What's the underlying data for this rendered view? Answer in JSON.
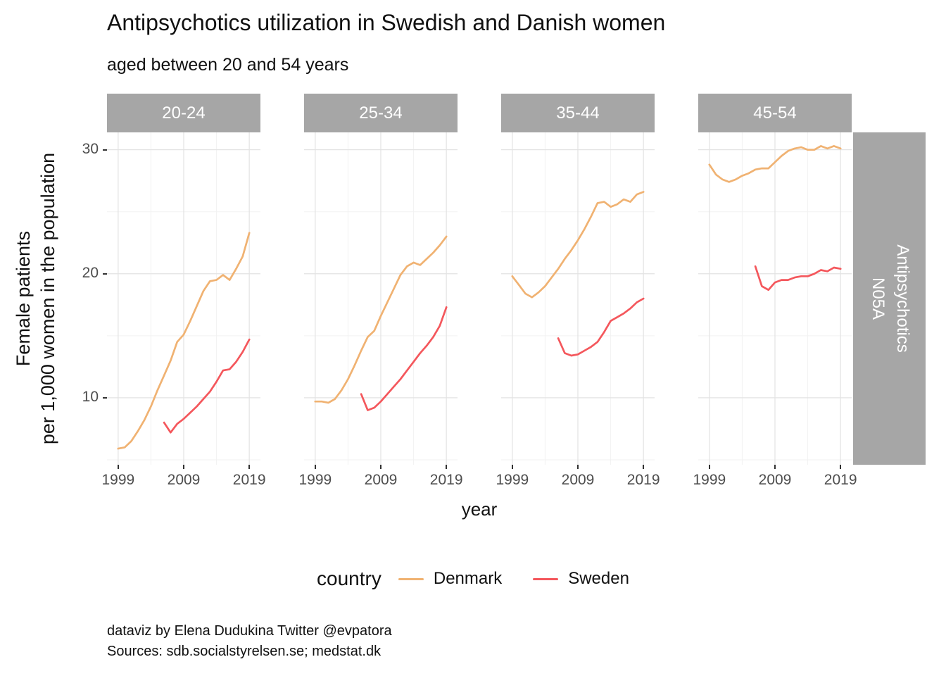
{
  "title": "Antipsychotics utilization in Swedish and Danish women",
  "subtitle": "aged between 20 and 54 years",
  "axis": {
    "x_label": "year",
    "y_label_line1": "Female patients",
    "y_label_line2": "per 1,000 women in the population"
  },
  "strip_right": {
    "line1": "Antipsychotics",
    "line2": "N05A"
  },
  "legend": {
    "title": "country"
  },
  "caption": {
    "line1": "dataviz by Elena Dudukina Twitter @evpatora",
    "line2": "Sources: sdb.socialstyrelsen.se; medstat.dk"
  },
  "colors": {
    "denmark": "#F0B272",
    "sweden": "#F4575C",
    "strip_bg": "#A6A6A6",
    "strip_text": "#FFFFFF",
    "grid_major": "#E3E3E3",
    "grid_minor": "#F2F2F2",
    "tick_text": "#4D4D4D"
  },
  "chart_data": {
    "type": "line",
    "title": "Antipsychotics utilization in Swedish and Danish women",
    "subtitle": "aged between 20 and 54 years",
    "xlabel": "year",
    "ylabel": "Female patients per 1,000 women in the population",
    "right_strip_label": "Antipsychotics N05A",
    "x_ticks": [
      1999,
      2009,
      2019
    ],
    "y_ticks": [
      10,
      20,
      30
    ],
    "x_minor": [
      2004,
      2014
    ],
    "y_minor": [
      5,
      15,
      25
    ],
    "x_range": [
      1997.3,
      2020.7
    ],
    "y_range": [
      4.6,
      31.4
    ],
    "grid": true,
    "legend": {
      "title": "country",
      "position": "bottom",
      "entries": [
        {
          "label": "Denmark",
          "color": "#F0B272"
        },
        {
          "label": "Sweden",
          "color": "#F4575C"
        }
      ]
    },
    "facets": [
      {
        "label": "20-24",
        "series": [
          {
            "name": "Denmark",
            "color": "#F0B272",
            "x": [
              1999,
              2000,
              2001,
              2002,
              2003,
              2004,
              2005,
              2006,
              2007,
              2008,
              2009,
              2010,
              2011,
              2012,
              2013,
              2014,
              2015,
              2016,
              2017,
              2018,
              2019
            ],
            "y": [
              5.9,
              6.0,
              6.5,
              7.3,
              8.2,
              9.3,
              10.6,
              11.8,
              13.0,
              14.5,
              15.1,
              16.2,
              17.4,
              18.6,
              19.4,
              19.5,
              19.9,
              19.5,
              20.4,
              21.4,
              23.3
            ]
          },
          {
            "name": "Sweden",
            "color": "#F4575C",
            "x": [
              2006,
              2007,
              2008,
              2009,
              2010,
              2011,
              2012,
              2013,
              2014,
              2015,
              2016,
              2017,
              2018,
              2019
            ],
            "y": [
              8.0,
              7.2,
              7.9,
              8.3,
              8.8,
              9.3,
              9.9,
              10.5,
              11.3,
              12.2,
              12.3,
              12.9,
              13.7,
              14.7
            ]
          }
        ]
      },
      {
        "label": "25-34",
        "series": [
          {
            "name": "Denmark",
            "color": "#F0B272",
            "x": [
              1999,
              2000,
              2001,
              2002,
              2003,
              2004,
              2005,
              2006,
              2007,
              2008,
              2009,
              2010,
              2011,
              2012,
              2013,
              2014,
              2015,
              2016,
              2017,
              2018,
              2019
            ],
            "y": [
              9.7,
              9.7,
              9.6,
              9.9,
              10.6,
              11.5,
              12.6,
              13.8,
              14.9,
              15.4,
              16.6,
              17.7,
              18.8,
              19.9,
              20.6,
              20.9,
              20.7,
              21.2,
              21.7,
              22.3,
              23.0
            ]
          },
          {
            "name": "Sweden",
            "color": "#F4575C",
            "x": [
              2006,
              2007,
              2008,
              2009,
              2010,
              2011,
              2012,
              2013,
              2014,
              2015,
              2016,
              2017,
              2018,
              2019
            ],
            "y": [
              10.3,
              9.0,
              9.2,
              9.7,
              10.3,
              10.9,
              11.5,
              12.2,
              12.9,
              13.6,
              14.2,
              14.9,
              15.8,
              17.3
            ]
          }
        ]
      },
      {
        "label": "35-44",
        "series": [
          {
            "name": "Denmark",
            "color": "#F0B272",
            "x": [
              1999,
              2000,
              2001,
              2002,
              2003,
              2004,
              2005,
              2006,
              2007,
              2008,
              2009,
              2010,
              2011,
              2012,
              2013,
              2014,
              2015,
              2016,
              2017,
              2018,
              2019
            ],
            "y": [
              19.8,
              19.1,
              18.4,
              18.1,
              18.5,
              19.0,
              19.7,
              20.4,
              21.2,
              21.9,
              22.7,
              23.6,
              24.6,
              25.7,
              25.8,
              25.4,
              25.6,
              26.0,
              25.8,
              26.4,
              26.6
            ]
          },
          {
            "name": "Sweden",
            "color": "#F4575C",
            "x": [
              2006,
              2007,
              2008,
              2009,
              2010,
              2011,
              2012,
              2013,
              2014,
              2015,
              2016,
              2017,
              2018,
              2019
            ],
            "y": [
              14.8,
              13.6,
              13.4,
              13.5,
              13.8,
              14.1,
              14.5,
              15.3,
              16.2,
              16.5,
              16.8,
              17.2,
              17.7,
              18.0
            ]
          }
        ]
      },
      {
        "label": "45-54",
        "series": [
          {
            "name": "Denmark",
            "color": "#F0B272",
            "x": [
              1999,
              2000,
              2001,
              2002,
              2003,
              2004,
              2005,
              2006,
              2007,
              2008,
              2009,
              2010,
              2011,
              2012,
              2013,
              2014,
              2015,
              2016,
              2017,
              2018,
              2019
            ],
            "y": [
              28.8,
              28.0,
              27.6,
              27.4,
              27.6,
              27.9,
              28.1,
              28.4,
              28.5,
              28.5,
              29.0,
              29.5,
              29.9,
              30.1,
              30.2,
              30.0,
              30.0,
              30.3,
              30.1,
              30.3,
              30.1
            ]
          },
          {
            "name": "Sweden",
            "color": "#F4575C",
            "x": [
              2006,
              2007,
              2008,
              2009,
              2010,
              2011,
              2012,
              2013,
              2014,
              2015,
              2016,
              2017,
              2018,
              2019
            ],
            "y": [
              20.6,
              19.0,
              18.7,
              19.3,
              19.5,
              19.5,
              19.7,
              19.8,
              19.8,
              20.0,
              20.3,
              20.2,
              20.5,
              20.4
            ]
          }
        ]
      }
    ]
  }
}
